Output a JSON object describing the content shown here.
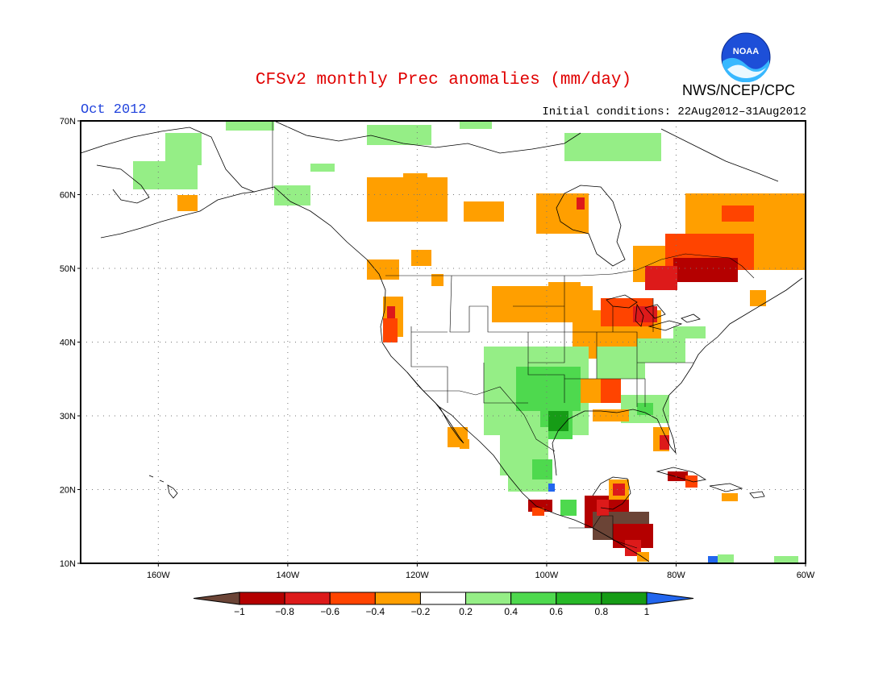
{
  "header": {
    "title": "CFSv2 monthly Prec anomalies (mm/day)",
    "month": "Oct 2012",
    "initial_conditions": "Initial conditions: 22Aug2012–31Aug2012",
    "organization": "NWS/NCEP/CPC",
    "logo_text": "NOAA"
  },
  "map": {
    "lat_labels": [
      "70N",
      "60N",
      "50N",
      "40N",
      "30N",
      "20N",
      "10N"
    ],
    "lon_labels": [
      "160W",
      "140W",
      "120W",
      "100W",
      "80W",
      "60W"
    ],
    "grid": true,
    "lon_range": [
      -172,
      -60
    ],
    "lat_range": [
      10,
      70
    ]
  },
  "colorbar": {
    "labels": [
      "−1",
      "−0.8",
      "−0.6",
      "−0.4",
      "−0.2",
      "0.2",
      "0.4",
      "0.6",
      "0.8",
      "1"
    ],
    "colors": [
      "#6b4436",
      "#b40000",
      "#dd1a1a",
      "#ff4400",
      "#ff9f00",
      "#ffffff",
      "#95ee86",
      "#4ed94e",
      "#27b827",
      "#169c16",
      "#2266ee"
    ]
  }
}
